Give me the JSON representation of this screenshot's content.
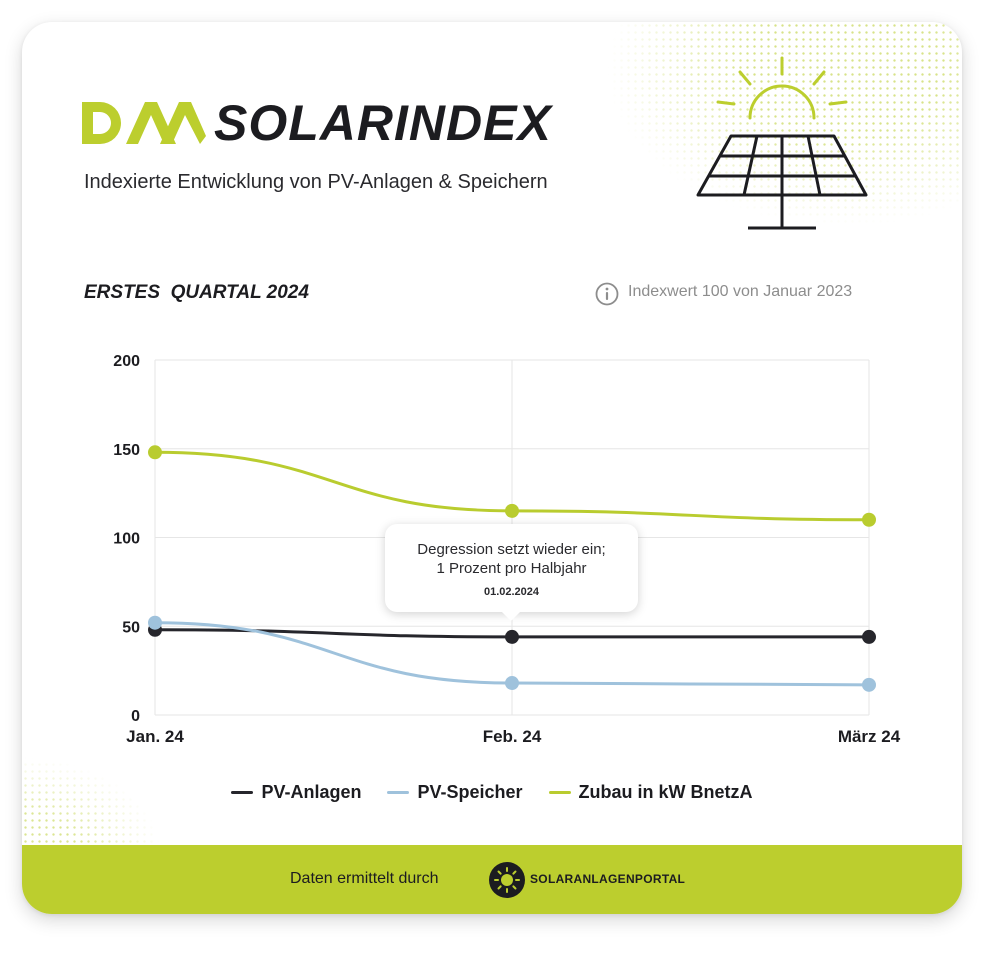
{
  "header": {
    "logo_text": "DAA",
    "title": "SOLARINDEX",
    "subtitle": "Indexierte Entwicklung von PV-Anlagen & Speichern"
  },
  "period": {
    "label": "ERSTES  QUARTAL 2024",
    "index_note": "Indexwert 100 von Januar 2023"
  },
  "colors": {
    "accent": "#bcce2e",
    "dark": "#1c1c20",
    "pv_anlagen": "#26262c",
    "pv_speicher": "#9fc2dc",
    "zubau": "#b9cc2f"
  },
  "chart_data": {
    "type": "line",
    "categories": [
      "Jan. 24",
      "Feb. 24",
      "März 24"
    ],
    "series": [
      {
        "name": "PV-Anlagen",
        "values": [
          48,
          44,
          44
        ],
        "color": "#26262c"
      },
      {
        "name": "PV-Speicher",
        "values": [
          52,
          18,
          17
        ],
        "color": "#9fc2dc"
      },
      {
        "name": "Zubau in kW BnetzA",
        "values": [
          148,
          115,
          110
        ],
        "color": "#b9cc2f"
      }
    ],
    "ylim": [
      0,
      200
    ],
    "yticks": [
      "0",
      "50",
      "100",
      "150",
      "200"
    ],
    "grid": true,
    "legend_position": "bottom",
    "annotation": {
      "line1": "Degression setzt wieder ein;",
      "line2": "1 Prozent pro Halbjahr",
      "date": "01.02.2024",
      "category": "Feb. 24"
    }
  },
  "footer": {
    "text": "Daten ermittelt durch",
    "brand": "SOLARANLAGENPORTAL"
  }
}
